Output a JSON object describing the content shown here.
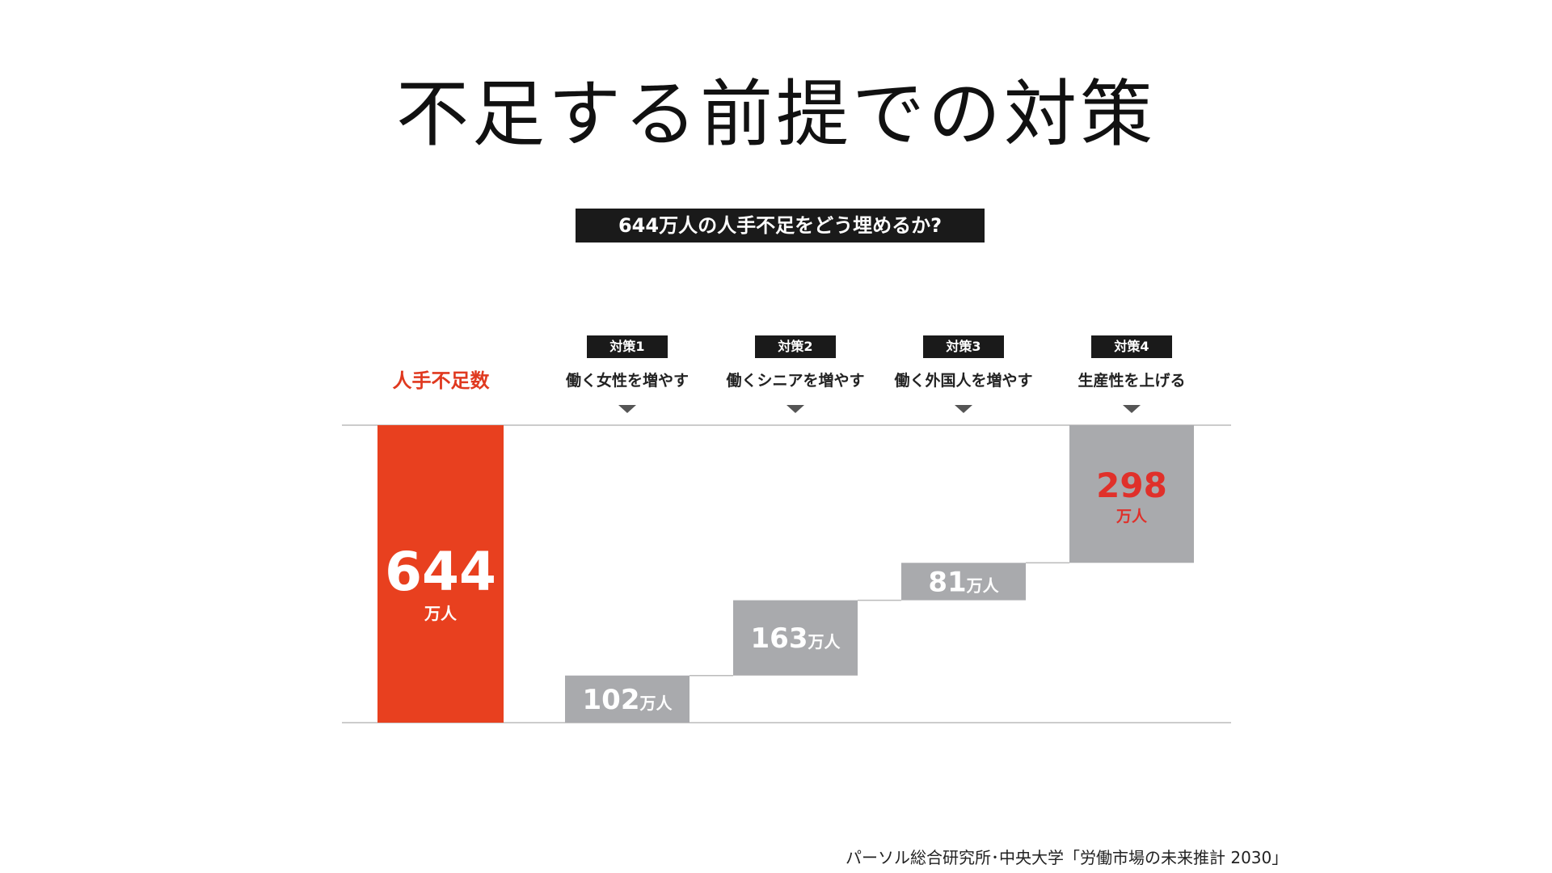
{
  "slide": {
    "title": "不足する前提での対策",
    "question": "644万人の人手不足をどう埋めるか?",
    "source": "パーソル総合研究所･中央大学「労働市場の未来推計 2030」"
  },
  "columns": {
    "total_label": "人手不足数",
    "measures": [
      {
        "tag": "対策1",
        "description": "働く女性を増やす"
      },
      {
        "tag": "対策2",
        "description": "働くシニアを増やす"
      },
      {
        "tag": "対策3",
        "description": "働く外国人を増やす"
      },
      {
        "tag": "対策4",
        "description": "生産性を上げる"
      }
    ]
  },
  "chart_data": {
    "type": "bar",
    "subtype": "waterfall",
    "title": "644万人の人手不足をどう埋めるか?",
    "unit": "万人",
    "categories": [
      "人手不足数",
      "働く女性を増やす",
      "働くシニアを増やす",
      "働く外国人を増やす",
      "生産性を上げる"
    ],
    "values": [
      644,
      102,
      163,
      81,
      298
    ],
    "labels": [
      "644",
      "102",
      "163",
      "81",
      "298"
    ],
    "base": [
      0,
      0,
      102,
      265,
      346
    ],
    "ylim": [
      0,
      644
    ],
    "grid": false,
    "legend": "none",
    "colors": {
      "total_bar": "#e8401f",
      "step_bar": "#a9aaad",
      "step_label": "#ffffff",
      "highlight_label": "#e0302a",
      "total_label": "#ffffff",
      "axis_line": "#bbbbbb"
    }
  }
}
